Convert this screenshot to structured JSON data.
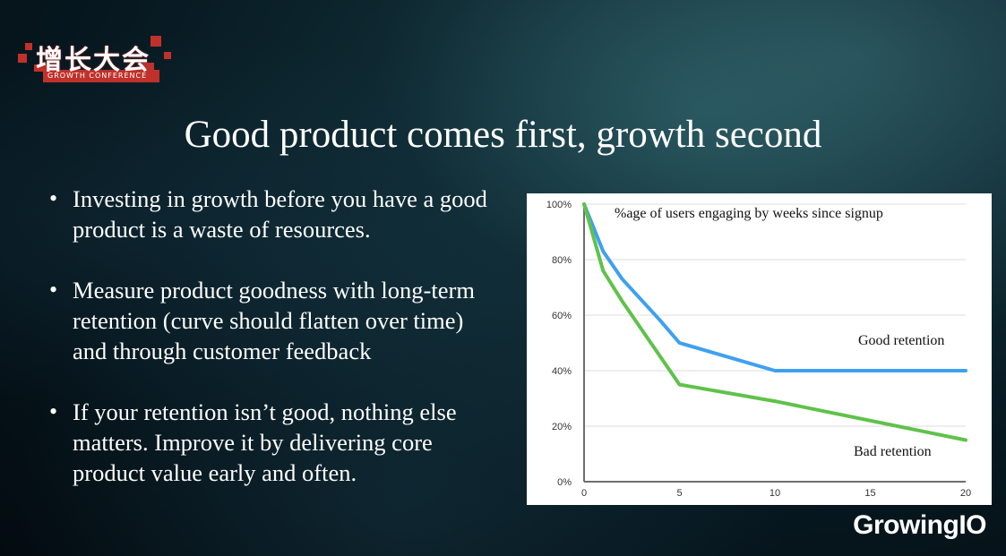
{
  "logo": {
    "cn": "增长大会",
    "en": "GROWTH CONFERENCE"
  },
  "title": "Good product comes first, growth second",
  "bullets": [
    "Investing in growth before you have a good product is a waste of resources.",
    "Measure product goodness with long-term retention (curve should flatten over time) and through customer feedback",
    "If your retention isn’t good, nothing else matters. Improve it by delivering core product value early and often."
  ],
  "brand": "GrowingIO",
  "colors": {
    "good": "#3fa0f0",
    "bad": "#5fc24a",
    "axis": "#6e6e6e",
    "grid": "#dcdcdc"
  },
  "chart_data": {
    "type": "line",
    "title": "%age of users engaging by weeks since signup",
    "xlim": [
      0,
      20
    ],
    "ylim": [
      0,
      100
    ],
    "x_ticks": [
      0,
      5,
      10,
      15,
      20
    ],
    "y_ticks": [
      "0%",
      "20%",
      "40%",
      "60%",
      "80%",
      "100%"
    ],
    "grid": true,
    "series": [
      {
        "name": "Good retention",
        "x": [
          0,
          1,
          2,
          4,
          5,
          10,
          20
        ],
        "y": [
          100,
          83,
          73,
          58,
          50,
          40,
          40
        ]
      },
      {
        "name": "Bad retention",
        "x": [
          0,
          1,
          2,
          5,
          10,
          20
        ],
        "y": [
          100,
          76,
          65,
          35,
          29,
          15
        ]
      }
    ]
  }
}
